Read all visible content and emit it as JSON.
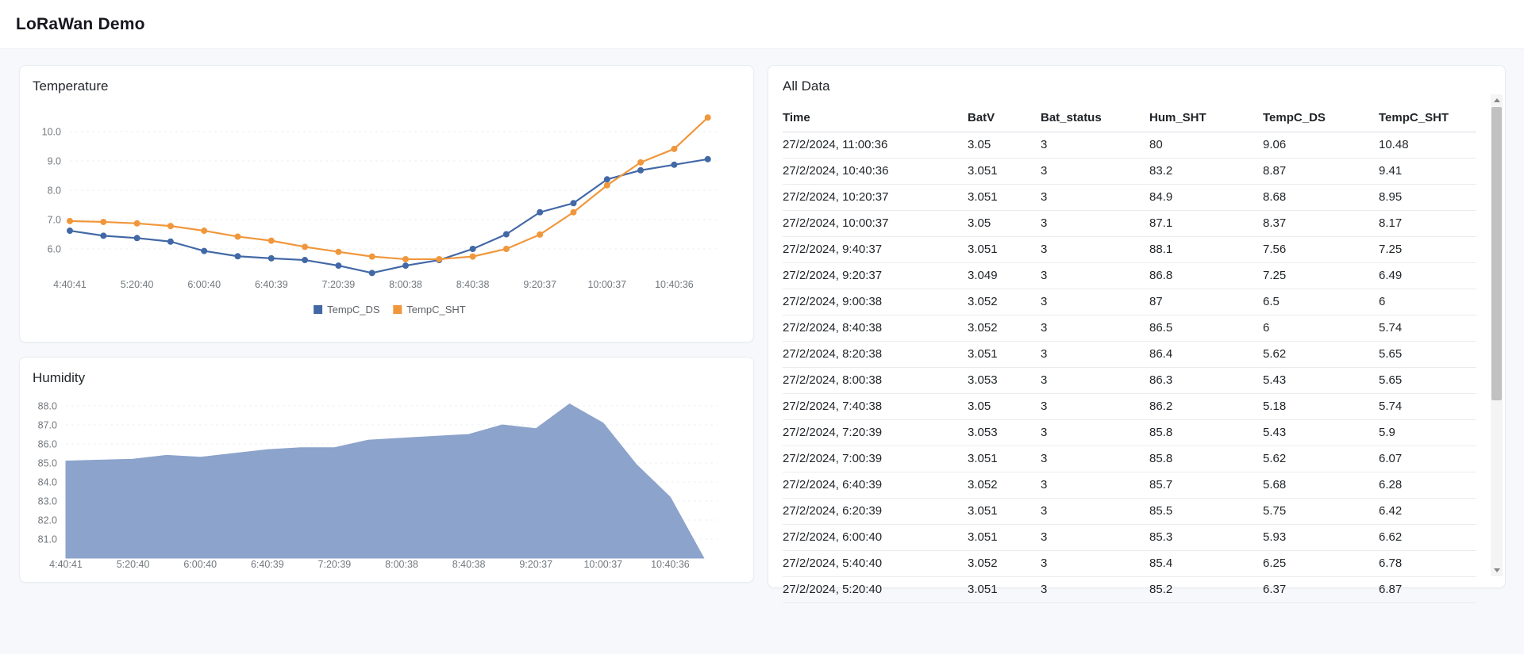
{
  "page": {
    "title": "LoRaWan Demo"
  },
  "cards": {
    "temperature": {
      "title": "Temperature"
    },
    "humidity": {
      "title": "Humidity"
    },
    "table": {
      "title": "All Data"
    }
  },
  "colors": {
    "tempc_ds": "#4268a6",
    "tempc_sht": "#f0973c",
    "humidity_fill": "#8ca3cb",
    "axis_text": "#73787d",
    "gridline": "#eceff1"
  },
  "chart_data": [
    {
      "type": "line",
      "title": "Temperature",
      "x": [
        "4:40:41",
        "5:00:41",
        "5:20:40",
        "5:40:40",
        "6:00:40",
        "6:20:39",
        "6:40:39",
        "7:00:39",
        "7:20:39",
        "7:40:38",
        "8:00:38",
        "8:20:38",
        "8:40:38",
        "9:00:38",
        "9:20:37",
        "9:40:37",
        "10:00:37",
        "10:20:37",
        "10:40:36",
        "11:00:36"
      ],
      "x_tick_labels": [
        "4:40:41",
        "5:20:40",
        "6:00:40",
        "6:40:39",
        "7:20:39",
        "8:00:38",
        "8:40:38",
        "9:20:37",
        "10:00:37",
        "10:40:36"
      ],
      "y_ticks": [
        "10.0",
        "9.0",
        "8.0",
        "7.0",
        "6.0"
      ],
      "ylim": [
        5.0,
        10.7
      ],
      "grid": "dashed-horizontal",
      "legend_position": "bottom-center",
      "legend": [
        "TempC_DS",
        "TempC_SHT"
      ],
      "series": [
        {
          "name": "TempC_DS",
          "color": "#4268a6",
          "values": [
            6.62,
            6.45,
            6.37,
            6.25,
            5.93,
            5.75,
            5.68,
            5.62,
            5.43,
            5.18,
            5.43,
            5.62,
            6,
            6.5,
            7.25,
            7.56,
            8.37,
            8.68,
            8.87,
            9.06
          ]
        },
        {
          "name": "TempC_SHT",
          "color": "#f0973c",
          "values": [
            6.95,
            6.92,
            6.87,
            6.78,
            6.62,
            6.42,
            6.28,
            6.07,
            5.9,
            5.74,
            5.65,
            5.65,
            5.74,
            6,
            6.49,
            7.25,
            8.17,
            8.95,
            9.41,
            10.48
          ]
        }
      ]
    },
    {
      "type": "area",
      "title": "Humidity",
      "x": [
        "4:40:41",
        "5:00:41",
        "5:20:40",
        "5:40:40",
        "6:00:40",
        "6:20:39",
        "6:40:39",
        "7:00:39",
        "7:20:39",
        "7:40:38",
        "8:00:38",
        "8:20:38",
        "8:40:38",
        "9:00:38",
        "9:20:37",
        "9:40:37",
        "10:00:37",
        "10:20:37",
        "10:40:36",
        "11:00:36"
      ],
      "x_tick_labels": [
        "4:40:41",
        "5:20:40",
        "6:00:40",
        "6:40:39",
        "7:20:39",
        "8:00:38",
        "8:40:38",
        "9:20:37",
        "10:00:37",
        "10:40:36"
      ],
      "y_ticks": [
        "88.0",
        "87.0",
        "86.0",
        "85.0",
        "84.0",
        "83.0",
        "82.0",
        "81.0"
      ],
      "ylim": [
        80,
        88.6
      ],
      "grid": "dashed-horizontal",
      "legend_position": "none",
      "series": [
        {
          "name": "Hum_SHT",
          "color": "#8ca3cb",
          "values": [
            85.1,
            85.15,
            85.2,
            85.4,
            85.3,
            85.5,
            85.7,
            85.8,
            85.8,
            86.2,
            86.3,
            86.4,
            86.5,
            87,
            86.8,
            88.1,
            87.1,
            84.9,
            83.2,
            80
          ]
        }
      ]
    }
  ],
  "table": {
    "columns": [
      "Time",
      "BatV",
      "Bat_status",
      "Hum_SHT",
      "TempC_DS",
      "TempC_SHT"
    ],
    "rows": [
      [
        "27/2/2024, 11:00:36",
        "3.05",
        "3",
        "80",
        "9.06",
        "10.48"
      ],
      [
        "27/2/2024, 10:40:36",
        "3.051",
        "3",
        "83.2",
        "8.87",
        "9.41"
      ],
      [
        "27/2/2024, 10:20:37",
        "3.051",
        "3",
        "84.9",
        "8.68",
        "8.95"
      ],
      [
        "27/2/2024, 10:00:37",
        "3.05",
        "3",
        "87.1",
        "8.37",
        "8.17"
      ],
      [
        "27/2/2024, 9:40:37",
        "3.051",
        "3",
        "88.1",
        "7.56",
        "7.25"
      ],
      [
        "27/2/2024, 9:20:37",
        "3.049",
        "3",
        "86.8",
        "7.25",
        "6.49"
      ],
      [
        "27/2/2024, 9:00:38",
        "3.052",
        "3",
        "87",
        "6.5",
        "6"
      ],
      [
        "27/2/2024, 8:40:38",
        "3.052",
        "3",
        "86.5",
        "6",
        "5.74"
      ],
      [
        "27/2/2024, 8:20:38",
        "3.051",
        "3",
        "86.4",
        "5.62",
        "5.65"
      ],
      [
        "27/2/2024, 8:00:38",
        "3.053",
        "3",
        "86.3",
        "5.43",
        "5.65"
      ],
      [
        "27/2/2024, 7:40:38",
        "3.05",
        "3",
        "86.2",
        "5.18",
        "5.74"
      ],
      [
        "27/2/2024, 7:20:39",
        "3.053",
        "3",
        "85.8",
        "5.43",
        "5.9"
      ],
      [
        "27/2/2024, 7:00:39",
        "3.051",
        "3",
        "85.8",
        "5.62",
        "6.07"
      ],
      [
        "27/2/2024, 6:40:39",
        "3.052",
        "3",
        "85.7",
        "5.68",
        "6.28"
      ],
      [
        "27/2/2024, 6:20:39",
        "3.051",
        "3",
        "85.5",
        "5.75",
        "6.42"
      ],
      [
        "27/2/2024, 6:00:40",
        "3.051",
        "3",
        "85.3",
        "5.93",
        "6.62"
      ],
      [
        "27/2/2024, 5:40:40",
        "3.052",
        "3",
        "85.4",
        "6.25",
        "6.78"
      ],
      [
        "27/2/2024, 5:20:40",
        "3.051",
        "3",
        "85.2",
        "6.37",
        "6.87"
      ]
    ]
  }
}
